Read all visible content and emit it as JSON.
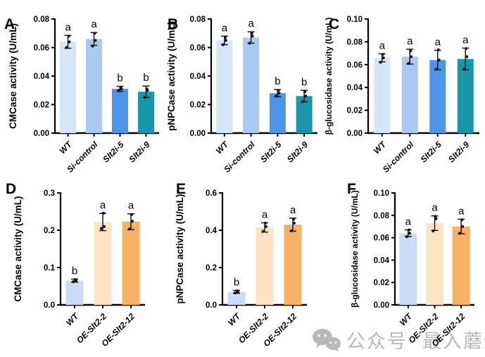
{
  "colors": {
    "background": "#ffffff",
    "axis": "#000000",
    "error_bar": "#1a1a1a",
    "point": "#111111",
    "watermark_gray": "#b9b9b9"
  },
  "watermark": {
    "icon": "wechat-icon",
    "platform_label": "公众号",
    "separator": "·",
    "account_name": "最入蘑道"
  },
  "chart_data": [
    {
      "panel_label": "A",
      "type": "bar",
      "ylabel": "CMCase activity (U/mL)",
      "ylim": [
        0,
        0.08
      ],
      "ytick_values": [
        0,
        0.02,
        0.04,
        0.06,
        0.08
      ],
      "ytick_labels": [
        "0.00",
        "0.02",
        "0.04",
        "0.06",
        "0.08"
      ],
      "categories": [
        "WT",
        "Si-control",
        "Slt2i-5",
        "Slt2i-9"
      ],
      "values": [
        0.064,
        0.066,
        0.031,
        0.029
      ],
      "errors": [
        0.0045,
        0.0045,
        0.0018,
        0.004
      ],
      "points": [
        [
          0.06,
          0.064,
          0.068
        ],
        [
          0.061,
          0.065,
          0.07
        ],
        [
          0.03,
          0.031,
          0.032
        ],
        [
          0.025,
          0.03,
          0.031
        ]
      ],
      "sig_letters": [
        "a",
        "a",
        "b",
        "b"
      ],
      "bar_colors": [
        "#d7e5f8",
        "#a9c9f3",
        "#4d95e8",
        "#1897a6"
      ],
      "grid": false,
      "legend": null
    },
    {
      "panel_label": "B",
      "type": "bar",
      "ylabel": "pNPCase activity (U/mL)",
      "ylim": [
        0,
        0.08
      ],
      "ytick_values": [
        0,
        0.02,
        0.04,
        0.06,
        0.08
      ],
      "ytick_labels": [
        "0.00",
        "0.02",
        "0.04",
        "0.06",
        "0.08"
      ],
      "categories": [
        "WT",
        "Si-control",
        "Slt2i-5",
        "Slt2i-9"
      ],
      "values": [
        0.065,
        0.067,
        0.028,
        0.026
      ],
      "errors": [
        0.003,
        0.004,
        0.0025,
        0.004
      ],
      "points": [
        [
          0.062,
          0.065,
          0.067
        ],
        [
          0.063,
          0.068,
          0.07
        ],
        [
          0.026,
          0.028,
          0.03
        ],
        [
          0.022,
          0.026,
          0.029
        ]
      ],
      "sig_letters": [
        "a",
        "a",
        "b",
        "b"
      ],
      "bar_colors": [
        "#d7e5f8",
        "#a9c9f3",
        "#4d95e8",
        "#1897a6"
      ],
      "grid": false,
      "legend": null
    },
    {
      "panel_label": "C",
      "type": "bar",
      "ylabel": "β-glucosidase activity (U/mL)",
      "ylim": [
        0,
        0.1
      ],
      "ytick_values": [
        0,
        0.02,
        0.04,
        0.06,
        0.08,
        0.1
      ],
      "ytick_labels": [
        "0.00",
        "0.02",
        "0.04",
        "0.06",
        "0.08",
        "0.10"
      ],
      "categories": [
        "WT",
        "Si-control",
        "Slt2i-5",
        "Slt2i-9"
      ],
      "values": [
        0.066,
        0.067,
        0.064,
        0.065
      ],
      "errors": [
        0.0035,
        0.0065,
        0.0085,
        0.0095
      ],
      "points": [
        [
          0.062,
          0.066,
          0.069
        ],
        [
          0.061,
          0.067,
          0.072
        ],
        [
          0.056,
          0.064,
          0.073
        ],
        [
          0.056,
          0.067,
          0.074
        ]
      ],
      "sig_letters": [
        "a",
        "a",
        "a",
        "a"
      ],
      "bar_colors": [
        "#d7e5f8",
        "#a9c9f3",
        "#4d95e8",
        "#1897a6"
      ],
      "grid": false,
      "legend": null
    },
    {
      "panel_label": "D",
      "type": "bar",
      "ylabel": "CMCase activity (U/mL)",
      "ylim": [
        0,
        0.3
      ],
      "ytick_values": [
        0,
        0.1,
        0.2,
        0.3
      ],
      "ytick_labels": [
        "0.0",
        "0.1",
        "0.2",
        "0.3"
      ],
      "categories": [
        "WT",
        "OE-Slt2-2",
        "OE-Slt2-12"
      ],
      "values": [
        0.065,
        0.222,
        0.223
      ],
      "errors": [
        0.004,
        0.023,
        0.021
      ],
      "points": [
        [
          0.062,
          0.065,
          0.068
        ],
        [
          0.205,
          0.21,
          0.246
        ],
        [
          0.203,
          0.224,
          0.242
        ]
      ],
      "sig_letters": [
        "b",
        "a",
        "a"
      ],
      "bar_colors": [
        "#c9ddf6",
        "#fce3c2",
        "#f7b163"
      ],
      "grid": false,
      "legend": null
    },
    {
      "panel_label": "E",
      "type": "bar",
      "ylabel": "pNPCase activity (U/mL)",
      "ylim": [
        0,
        0.6
      ],
      "ytick_values": [
        0,
        0.2,
        0.4,
        0.6
      ],
      "ytick_labels": [
        "0.0",
        "0.2",
        "0.4",
        "0.6"
      ],
      "categories": [
        "WT",
        "OE-Slt2-2",
        "OE-Slt2-12"
      ],
      "values": [
        0.07,
        0.415,
        0.43
      ],
      "errors": [
        0.008,
        0.025,
        0.035
      ],
      "points": [
        [
          0.064,
          0.07,
          0.075
        ],
        [
          0.395,
          0.42,
          0.438
        ],
        [
          0.397,
          0.438,
          0.458
        ]
      ],
      "sig_letters": [
        "b",
        "a",
        "a"
      ],
      "bar_colors": [
        "#c9ddf6",
        "#fce3c2",
        "#f7b163"
      ],
      "grid": false,
      "legend": null
    },
    {
      "panel_label": "F",
      "type": "bar",
      "ylabel": "β-glucosidase activity (U/mL)",
      "ylim": [
        0,
        0.1
      ],
      "ytick_values": [
        0,
        0.02,
        0.04,
        0.06,
        0.08,
        0.1
      ],
      "ytick_labels": [
        "0.00",
        "0.02",
        "0.04",
        "0.06",
        "0.08",
        "0.10"
      ],
      "categories": [
        "WT",
        "OE-Slt2-2",
        "OE-Slt2-12"
      ],
      "values": [
        0.064,
        0.073,
        0.07
      ],
      "errors": [
        0.003,
        0.0065,
        0.0065
      ],
      "points": [
        [
          0.061,
          0.064,
          0.067
        ],
        [
          0.066,
          0.077,
          0.079
        ],
        [
          0.064,
          0.07,
          0.076
        ]
      ],
      "sig_letters": [
        "a",
        "a",
        "a"
      ],
      "bar_colors": [
        "#c9ddf6",
        "#fce3c2",
        "#f7b163"
      ],
      "grid": false,
      "legend": null
    }
  ]
}
